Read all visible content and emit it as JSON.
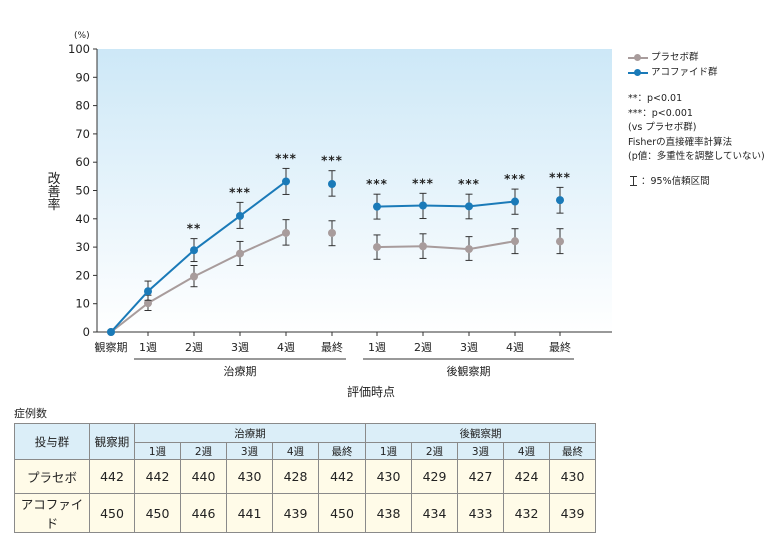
{
  "chart_data": {
    "type": "line",
    "y_unit": "(%)",
    "ylabel": "改善率",
    "xlabel": "評価時点",
    "ylim": [
      0,
      100
    ],
    "yticks": [
      0,
      10,
      20,
      30,
      40,
      50,
      60,
      70,
      80,
      90,
      100
    ],
    "categories": [
      "観察期",
      "1週",
      "2週",
      "3週",
      "4週",
      "最終",
      "1週",
      "2週",
      "3週",
      "4週",
      "最終"
    ],
    "groups": [
      {
        "label": "治療期",
        "from": 1,
        "to": 5
      },
      {
        "label": "後観察期",
        "from": 6,
        "to": 10
      }
    ],
    "series": [
      {
        "name": "プラセボ群",
        "color": "#a89c9c",
        "values": [
          0,
          10.2,
          19.6,
          27.7,
          35.0,
          35.0,
          30.0,
          30.3,
          29.3,
          32.1,
          32.0
        ],
        "ci_low": [
          null,
          7.6,
          16.0,
          23.5,
          30.7,
          30.5,
          25.7,
          26.0,
          25.3,
          27.7,
          27.7
        ],
        "ci_high": [
          null,
          13.0,
          23.5,
          32.0,
          39.7,
          39.3,
          34.3,
          34.7,
          33.7,
          36.5,
          36.5
        ],
        "segments": [
          [
            0,
            4
          ],
          [
            6,
            9
          ]
        ]
      },
      {
        "name": "アコファイド群",
        "color": "#1a7ab8",
        "values": [
          0,
          14.4,
          28.9,
          41.0,
          53.2,
          52.3,
          44.3,
          44.7,
          44.4,
          46.1,
          46.6
        ],
        "ci_low": [
          null,
          11.2,
          24.9,
          36.6,
          48.6,
          48.0,
          39.9,
          40.1,
          40.0,
          41.6,
          42.0
        ],
        "ci_high": [
          null,
          18.0,
          33.0,
          45.8,
          57.8,
          57.0,
          48.7,
          49.0,
          48.7,
          50.5,
          51.1
        ],
        "segments": [
          [
            0,
            4
          ],
          [
            6,
            9
          ]
        ]
      }
    ],
    "significance": [
      "",
      "",
      "**",
      "***",
      "***",
      "***",
      "***",
      "***",
      "***",
      "***",
      "***"
    ]
  },
  "legend": {
    "placebo": "プラセボ群",
    "acofide": "アコファイド群",
    "note1": "**：p<0.01",
    "note2": "***：p<0.001",
    "note3": "(vs プラセボ群)",
    "note4": "Fisherの直接確率計算法",
    "note5": "(p値：多重性を調整していない)",
    "ci": "：95%信頼区間"
  },
  "table": {
    "title": "症例数",
    "h_group": "投与群",
    "h_obs": "観察期",
    "h_treat": "治療期",
    "h_post": "後観察期",
    "sub": [
      "1週",
      "2週",
      "3週",
      "4週",
      "最終",
      "1週",
      "2週",
      "3週",
      "4週",
      "最終"
    ],
    "rows": [
      {
        "name": "プラセボ",
        "obs": "442",
        "vals": [
          "442",
          "440",
          "430",
          "428",
          "442",
          "430",
          "429",
          "427",
          "424",
          "430"
        ]
      },
      {
        "name": "アコファイド",
        "obs": "450",
        "vals": [
          "450",
          "446",
          "441",
          "439",
          "450",
          "438",
          "434",
          "433",
          "432",
          "439"
        ]
      }
    ]
  }
}
